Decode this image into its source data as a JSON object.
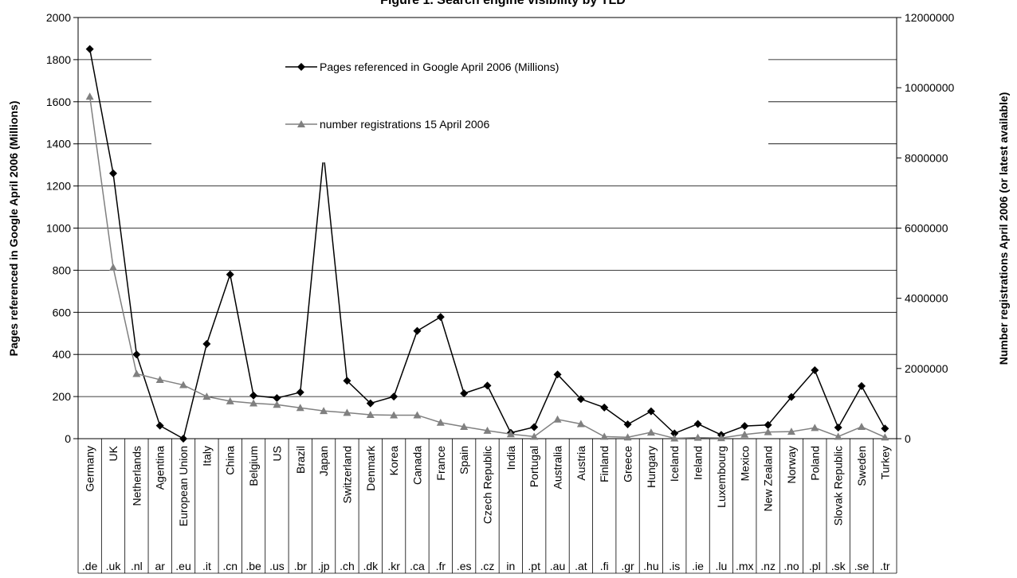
{
  "chart_data": {
    "type": "line",
    "title": "Figure 1. Search engine visibility by TLD",
    "ylabel_left": "Pages referenced in Google April 2006 (Millions)",
    "ylabel_right": "Number registrations April 2006 (or latest available)",
    "ylim_left": [
      0,
      2000
    ],
    "ylim_right": [
      0,
      12000000
    ],
    "yticks_left": [
      "0",
      "200",
      "400",
      "600",
      "800",
      "1000",
      "1200",
      "1400",
      "1600",
      "1800",
      "2000"
    ],
    "yticks_right": [
      "0",
      "2000000",
      "4000000",
      "6000000",
      "8000000",
      "10000000",
      "12000000"
    ],
    "grid": true,
    "legend_position": "top-center",
    "categories": [
      "Germany",
      "UK",
      "Netherlands",
      "Agentina",
      "European Union",
      "Italy",
      "China",
      "Belgium",
      "US",
      "Brazil",
      "Japan",
      "Switzerland",
      "Denmark",
      "Korea",
      "Canada",
      "France",
      "Spain",
      "Czech Republic",
      "India",
      "Portugal",
      "Australia",
      "Austria",
      "Finland",
      "Greece",
      "Hungary",
      "Iceland",
      "Ireland",
      "Luxembourg",
      "Mexico",
      "New Zealand",
      "Norway",
      "Poland",
      "Slovak Republic",
      "Sweden",
      "Turkey"
    ],
    "tlds": [
      ".de",
      ".uk",
      ".nl",
      "ar",
      ".eu",
      ".it",
      ".cn",
      ".be",
      ".us",
      ".br",
      ".jp",
      ".ch",
      ".dk",
      ".kr",
      ".ca",
      ".fr",
      ".es",
      ".cz",
      "in",
      ".pt",
      ".au",
      ".at",
      ".fi",
      ".gr",
      ".hu",
      ".is",
      ".ie",
      ".lu",
      ".mx",
      ".nz",
      ".no",
      ".pl",
      ".sk",
      ".se",
      ".tr"
    ],
    "series": [
      {
        "name": "Pages referenced in Google April 2006 (Millions)",
        "axis": "left",
        "color": "#000000",
        "marker": "diamond",
        "values": [
          1850,
          1260,
          400,
          62,
          0,
          450,
          780,
          205,
          193,
          220,
          1350,
          275,
          168,
          200,
          512,
          578,
          215,
          252,
          28,
          55,
          305,
          188,
          148,
          68,
          130,
          25,
          70,
          18,
          60,
          65,
          198,
          325,
          53,
          250,
          48
        ]
      },
      {
        "name": "number registrations 15 April 2006",
        "axis": "right",
        "color": "#808080",
        "marker": "triangle",
        "values": [
          9750000,
          4880000,
          1850000,
          1680000,
          1530000,
          1200000,
          1070000,
          1010000,
          970000,
          880000,
          790000,
          740000,
          680000,
          670000,
          670000,
          460000,
          340000,
          230000,
          130000,
          60000,
          550000,
          420000,
          60000,
          40000,
          180000,
          10000,
          30000,
          20000,
          120000,
          190000,
          200000,
          310000,
          60000,
          340000,
          40000
        ]
      }
    ]
  }
}
